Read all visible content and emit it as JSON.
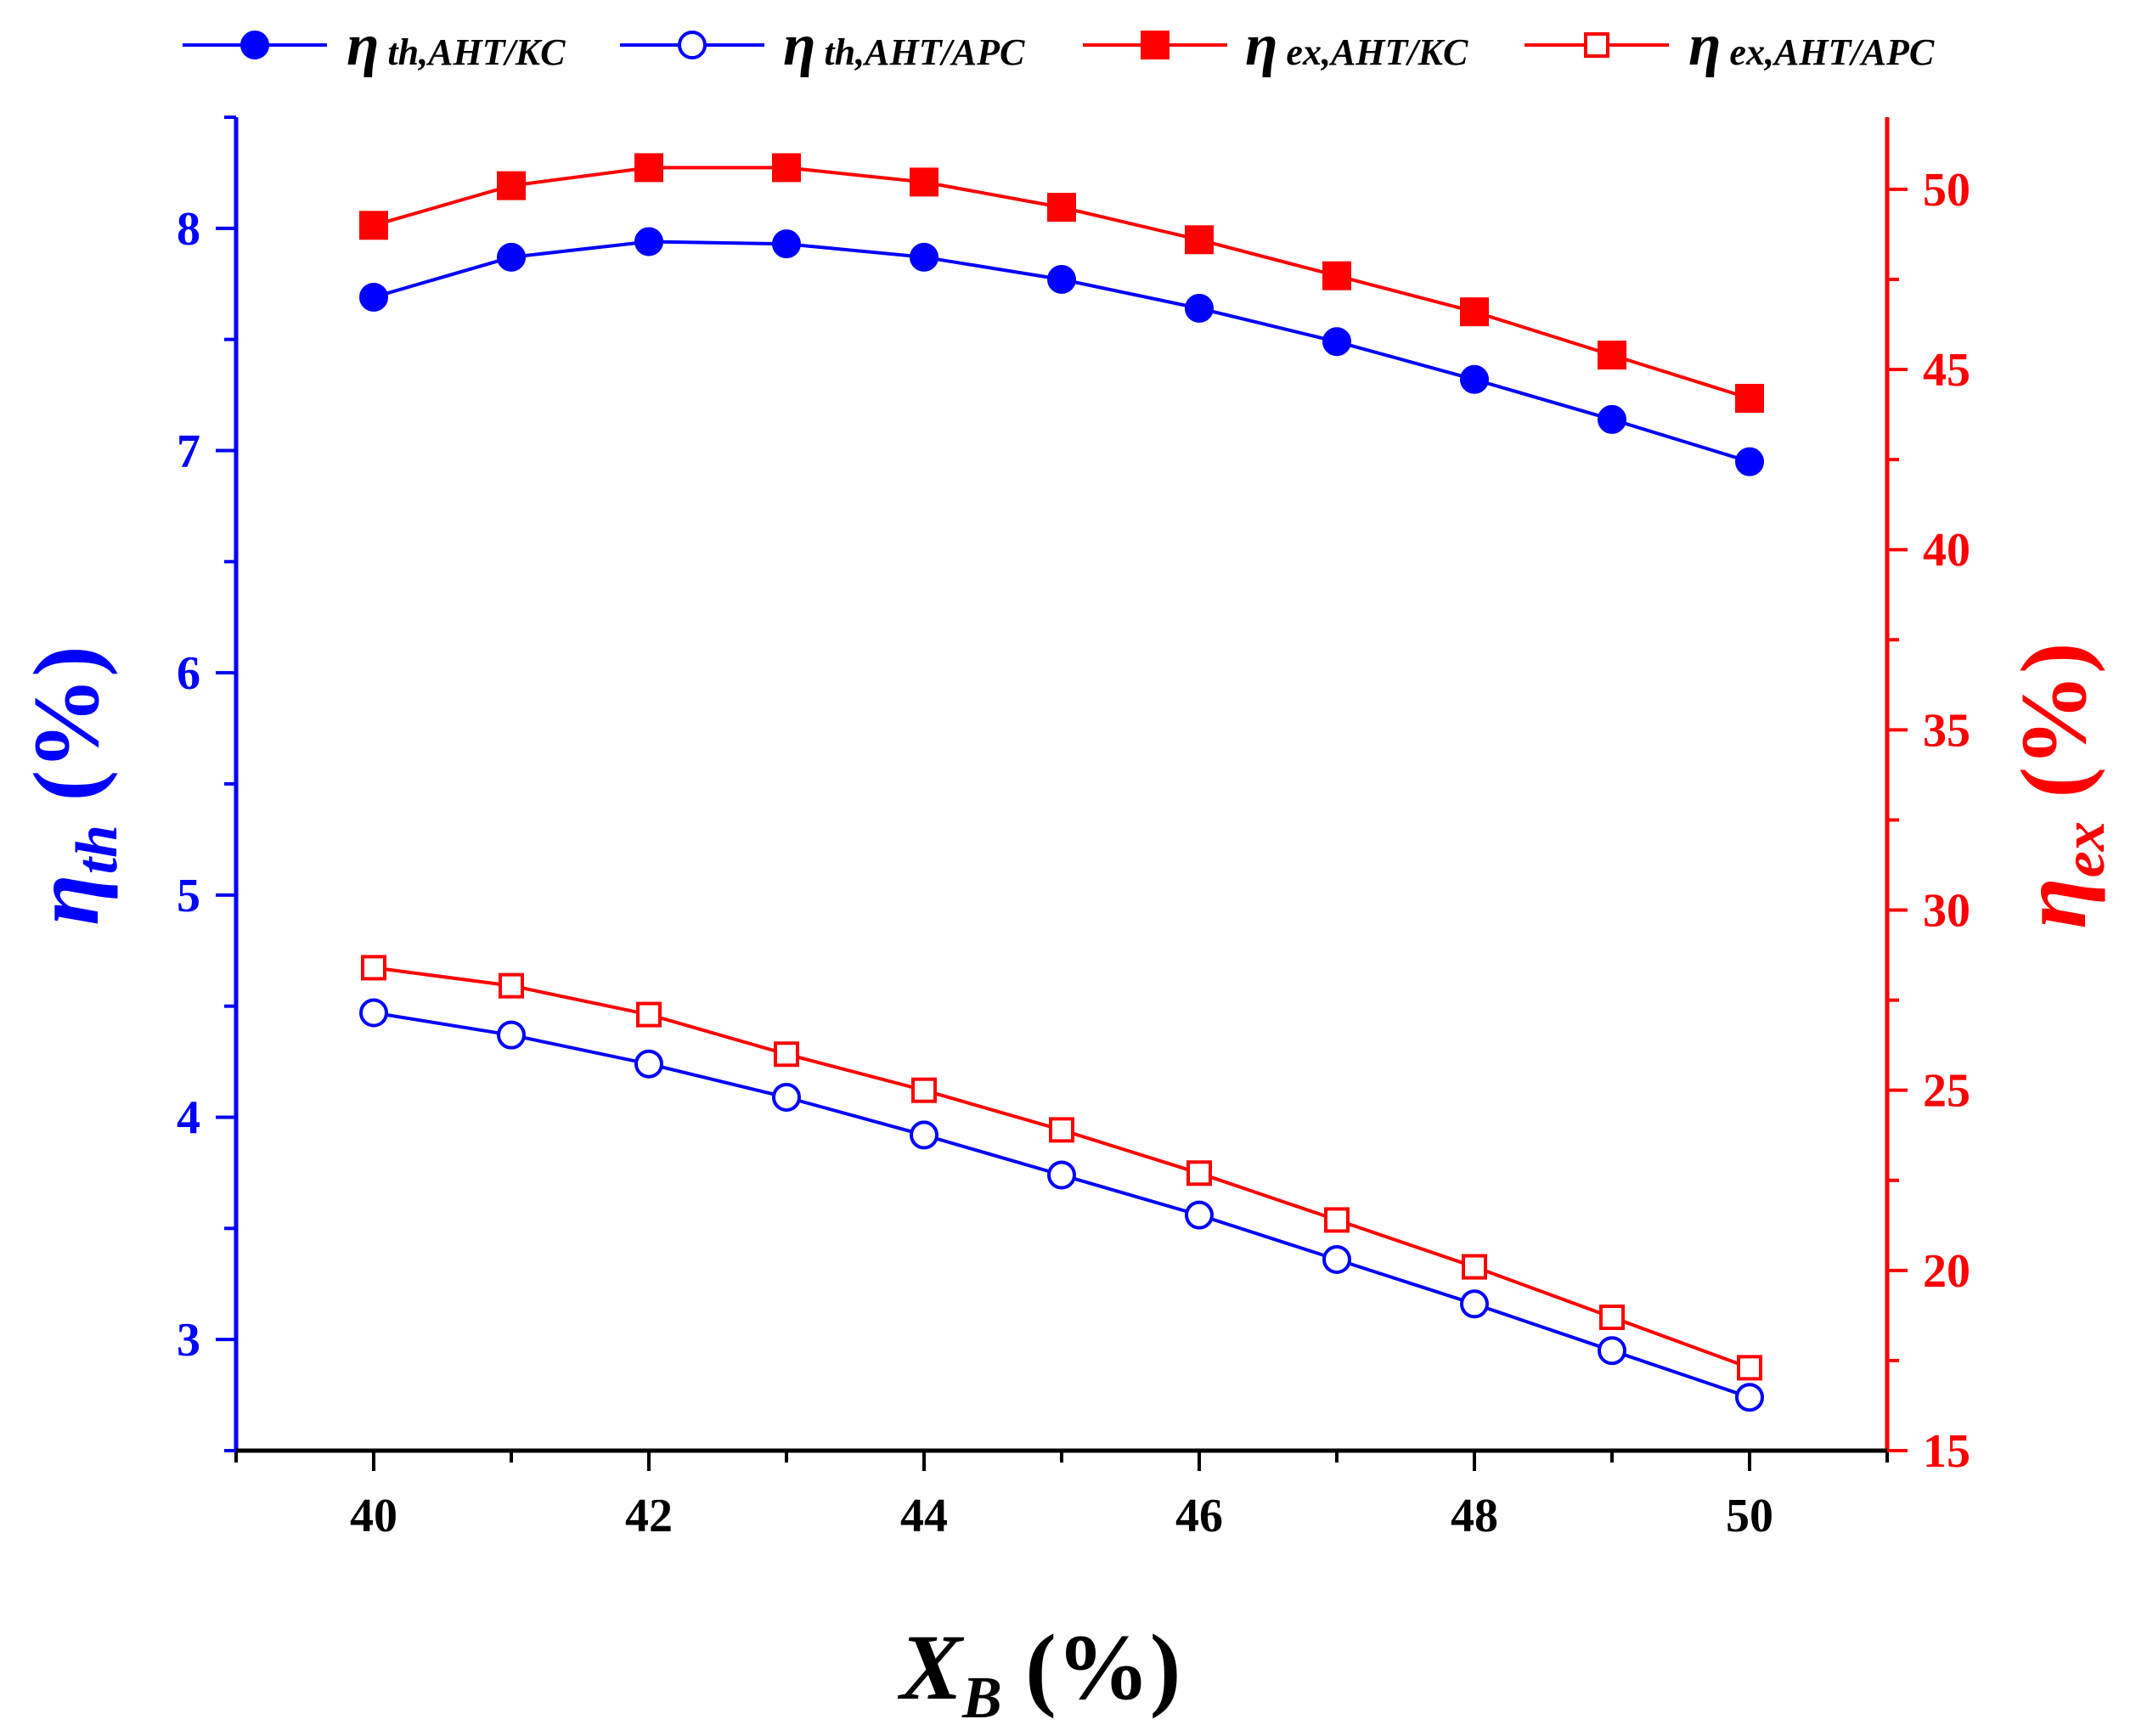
{
  "chart_data": {
    "type": "line",
    "title": "",
    "colors": {
      "th": "#0000ff",
      "ex": "#ff0000",
      "axis_x": "#000000"
    },
    "x": [
      40,
      41,
      42,
      43,
      44,
      45,
      46,
      47,
      48,
      49,
      50
    ],
    "xlim": [
      39,
      51
    ],
    "xticks": [
      40,
      42,
      44,
      46,
      48,
      50
    ],
    "xlabel": {
      "main": "X",
      "sub": "B",
      "unit": " (%)"
    },
    "ylim_left": [
      2.5,
      8.5
    ],
    "yticks_left": [
      3,
      4,
      5,
      6,
      7,
      8
    ],
    "ylabel_left": {
      "main": "η",
      "sub": "th",
      "unit": " (%)"
    },
    "ylim_right": [
      15,
      52
    ],
    "yticks_right": [
      15,
      20,
      25,
      30,
      35,
      40,
      45,
      50
    ],
    "ylabel_right": {
      "main": "η",
      "sub": "ex",
      "unit": " (%)"
    },
    "series": [
      {
        "id": "th_kc",
        "name": "η th,AHT/KC",
        "legend_main": "η",
        "legend_sub": "th,AHT/KC",
        "axis": "left",
        "color": "#0000ff",
        "marker": "circle",
        "filled": true,
        "values": [
          7.69,
          7.87,
          7.94,
          7.93,
          7.87,
          7.77,
          7.64,
          7.49,
          7.32,
          7.14,
          6.95
        ]
      },
      {
        "id": "th_apc",
        "name": "η th,AHT/APC",
        "legend_main": "η",
        "legend_sub": "th,AHT/APC",
        "axis": "left",
        "color": "#0000ff",
        "marker": "circle",
        "filled": false,
        "values": [
          4.47,
          4.37,
          4.24,
          4.09,
          3.92,
          3.74,
          3.56,
          3.36,
          3.16,
          2.95,
          2.74
        ]
      },
      {
        "id": "ex_kc",
        "name": "η ex,AHT/KC",
        "legend_main": "η",
        "legend_sub": "ex,AHT/KC",
        "axis": "right",
        "color": "#ff0000",
        "marker": "square",
        "filled": true,
        "values": [
          49.0,
          50.1,
          50.6,
          50.6,
          50.2,
          49.5,
          48.6,
          47.6,
          46.6,
          45.4,
          44.2
        ]
      },
      {
        "id": "ex_apc",
        "name": "η ex,AHT/APC",
        "legend_main": "η",
        "legend_sub": "ex,AHT/APC",
        "axis": "right",
        "color": "#ff0000",
        "marker": "square",
        "filled": false,
        "values": [
          28.4,
          27.9,
          27.1,
          26.0,
          25.0,
          23.9,
          22.7,
          21.4,
          20.1,
          18.7,
          17.3
        ]
      }
    ]
  }
}
